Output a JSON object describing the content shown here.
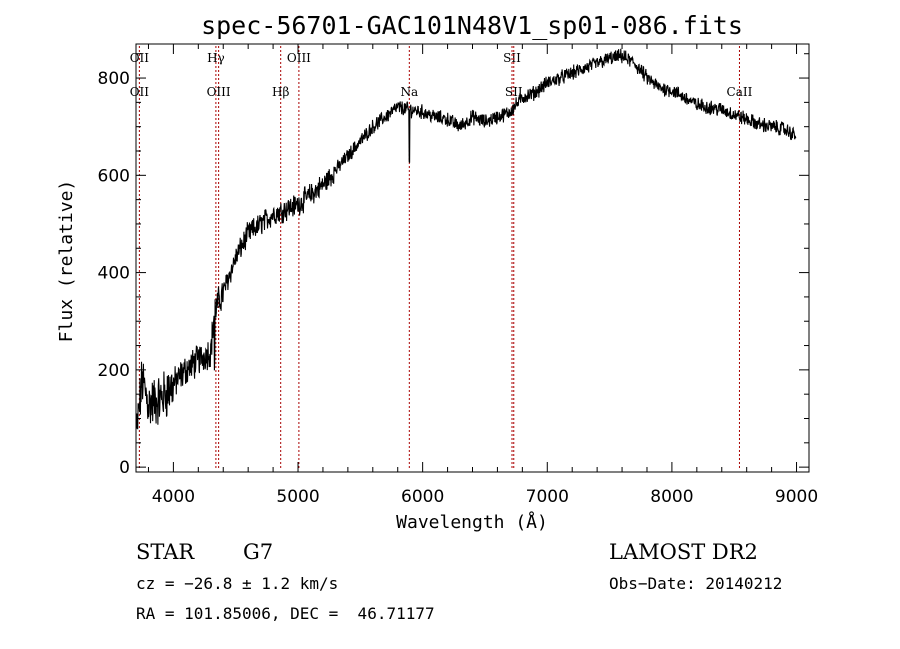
{
  "chart_data": {
    "type": "line",
    "title": "spec-56701-GAC101N48V1_sp01-086.fits",
    "xlabel": "Wavelength (Å)",
    "ylabel": "Flux (relative)",
    "xlim": [
      3700,
      9100
    ],
    "ylim": [
      -10,
      870
    ],
    "xticks": [
      4000,
      5000,
      6000,
      7000,
      8000,
      9000
    ],
    "yticks": [
      0,
      200,
      400,
      600,
      800
    ],
    "series_color": "#000000",
    "line_color": "#aa0000",
    "spectrum_anchor": {
      "x": [
        3700,
        3750,
        3800,
        3900,
        4000,
        4100,
        4200,
        4300,
        4330,
        4400,
        4500,
        4600,
        4700,
        4800,
        4900,
        5000,
        5100,
        5200,
        5300,
        5400,
        5500,
        5600,
        5700,
        5800,
        5900,
        6000,
        6100,
        6200,
        6300,
        6400,
        6500,
        6600,
        6700,
        6800,
        6900,
        7000,
        7100,
        7200,
        7300,
        7400,
        7500,
        7600,
        7700,
        7800,
        7900,
        8000,
        8100,
        8200,
        8300,
        8400,
        8500,
        8600,
        8700,
        8800,
        8900,
        9000
      ],
      "y": [
        60,
        180,
        130,
        140,
        170,
        200,
        220,
        240,
        320,
        360,
        430,
        480,
        500,
        520,
        530,
        540,
        560,
        580,
        610,
        640,
        670,
        700,
        720,
        740,
        735,
        730,
        720,
        715,
        700,
        720,
        710,
        720,
        730,
        760,
        770,
        790,
        800,
        810,
        820,
        830,
        840,
        845,
        830,
        800,
        780,
        775,
        760,
        745,
        740,
        735,
        725,
        715,
        705,
        700,
        695,
        680
      ]
    },
    "emission_lines": [
      {
        "x": 3727,
        "upper": "OII",
        "lower": "OII"
      },
      {
        "x": 4341,
        "upper": "Hγ",
        "lower": ""
      },
      {
        "x": 4363,
        "upper": "",
        "lower": "OIII"
      },
      {
        "x": 4861,
        "upper": "",
        "lower": "Hβ"
      },
      {
        "x": 5007,
        "upper": "OIII",
        "lower": ""
      },
      {
        "x": 5893,
        "upper": "",
        "lower": "Na"
      },
      {
        "x": 6717,
        "upper": "SII",
        "lower": ""
      },
      {
        "x": 6731,
        "upper": "",
        "lower": "SII"
      },
      {
        "x": 8542,
        "upper": "",
        "lower": "CaII"
      }
    ]
  },
  "info": {
    "class": "STAR",
    "subclass": "G7",
    "survey": "LAMOST DR2",
    "cz": "cz = −26.8 ± 1.2 km/s",
    "obs_date": "Obs−Date: 20140212",
    "coords": "RA = 101.85006, DEC =  46.71177"
  }
}
